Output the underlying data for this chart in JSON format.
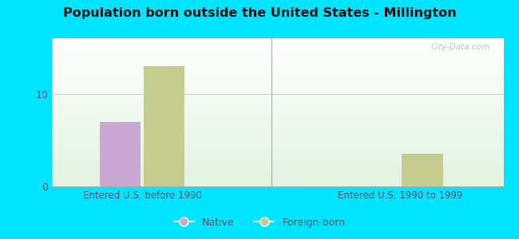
{
  "title": "Population born outside the United States - Millington",
  "background_color": "#00e5ff",
  "groups": [
    "Entered U.S. before 1990",
    "Entered U.S. 1990 to 1999"
  ],
  "native_values": [
    7.0,
    0
  ],
  "foreign_values": [
    13.0,
    3.5
  ],
  "native_color": "#c9a8d4",
  "foreign_color": "#c5cc8e",
  "ylim": [
    0,
    16
  ],
  "yticks": [
    0,
    10
  ],
  "bar_width": 0.32,
  "group_positions": [
    1.0,
    3.0
  ],
  "legend_native": "Native",
  "legend_foreign": "Foreign-born",
  "watermark": "City-Data.com",
  "tick_color": "#555566",
  "label_color": "#555566"
}
